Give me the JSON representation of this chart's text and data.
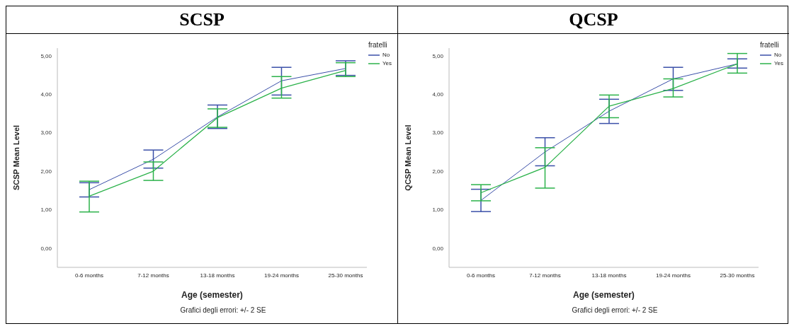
{
  "chart_data": [
    {
      "type": "line",
      "title": "SCSP",
      "xlabel": "Age (semester)",
      "ylabel": "SCSP Mean Level",
      "legend_title": "fratelli",
      "legend": "top right",
      "line_style": "solid",
      "annotations": [
        "Grafici degli errori: +/- 2 SE"
      ],
      "categories": [
        "0-6 months",
        "7-12 months",
        "13-18 months",
        "19-24 months",
        "25-30 months"
      ],
      "ylim": [
        -0.5,
        5.2
      ],
      "yticks": [
        {
          "value": 0,
          "label": "0,00"
        },
        {
          "value": 1,
          "label": "1,00"
        },
        {
          "value": 2,
          "label": "2,00"
        },
        {
          "value": 3,
          "label": "3,00"
        },
        {
          "value": 4,
          "label": "4,00"
        },
        {
          "value": 5,
          "label": "5,00"
        }
      ],
      "series": [
        {
          "name": "No",
          "color": "#3a4fa8",
          "values": [
            1.52,
            2.31,
            3.41,
            4.35,
            4.67
          ],
          "errors": [
            [
              1.33,
              1.7
            ],
            [
              2.08,
              2.55
            ],
            [
              3.11,
              3.72
            ],
            [
              3.98,
              4.7
            ],
            [
              4.49,
              4.87
            ]
          ]
        },
        {
          "name": "Yes",
          "color": "#2bb24a",
          "values": [
            1.35,
            2.0,
            3.39,
            4.16,
            4.62
          ],
          "errors": [
            [
              0.94,
              1.74
            ],
            [
              1.76,
              2.24
            ],
            [
              3.14,
              3.62
            ],
            [
              3.9,
              4.46
            ],
            [
              4.46,
              4.82
            ]
          ]
        }
      ]
    },
    {
      "type": "line",
      "title": "QCSP",
      "xlabel": "Age (semester)",
      "ylabel": "QCSP Mean Level",
      "legend_title": "fratelli",
      "legend": "top right",
      "line_style": "solid",
      "annotations": [
        "Grafici degli errori: +/- 2 SE"
      ],
      "categories": [
        "0-6 months",
        "7-12 months",
        "13-18 months",
        "19-24 months",
        "25-30 months"
      ],
      "ylim": [
        -0.5,
        5.2
      ],
      "yticks": [
        {
          "value": 0,
          "label": "0,00"
        },
        {
          "value": 1,
          "label": "1,00"
        },
        {
          "value": 2,
          "label": "2,00"
        },
        {
          "value": 3,
          "label": "3,00"
        },
        {
          "value": 4,
          "label": "4,00"
        },
        {
          "value": 5,
          "label": "5,00"
        }
      ],
      "series": [
        {
          "name": "No",
          "color": "#3a4fa8",
          "values": [
            1.24,
            2.5,
            3.56,
            4.4,
            4.79
          ],
          "errors": [
            [
              0.95,
              1.53
            ],
            [
              2.14,
              2.87
            ],
            [
              3.24,
              3.87
            ],
            [
              4.1,
              4.7
            ],
            [
              4.68,
              4.92
            ]
          ]
        },
        {
          "name": "Yes",
          "color": "#2bb24a",
          "values": [
            1.44,
            2.1,
            3.69,
            4.15,
            4.79
          ],
          "errors": [
            [
              1.23,
              1.65
            ],
            [
              1.56,
              2.61
            ],
            [
              3.39,
              3.98
            ],
            [
              3.93,
              4.4
            ],
            [
              4.55,
              5.06
            ]
          ]
        }
      ]
    }
  ]
}
